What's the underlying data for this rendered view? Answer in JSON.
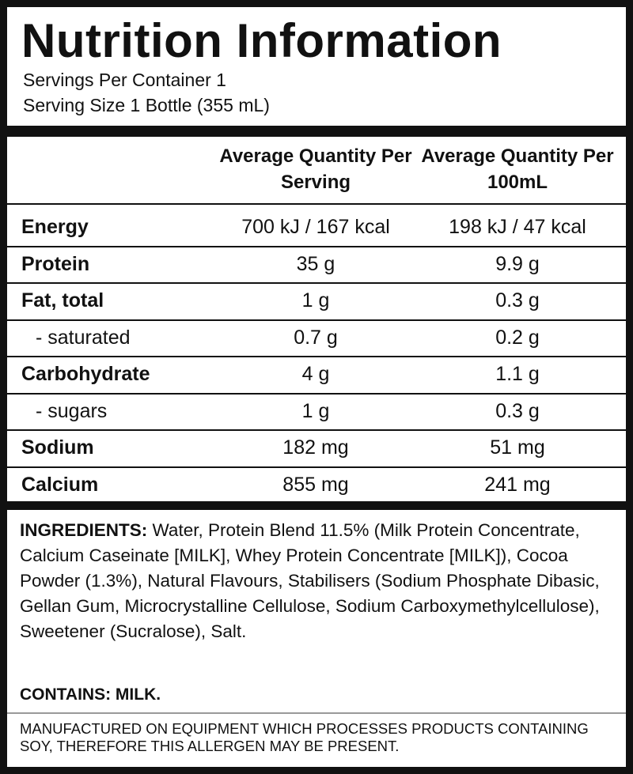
{
  "header": {
    "title": "Nutrition Information",
    "servings_per_container": "Servings Per Container 1",
    "serving_size": "Serving Size 1 Bottle (355 mL)"
  },
  "table": {
    "columns": [
      "Average Quantity Per Serving",
      "Average Quantity Per 100mL"
    ],
    "rows": [
      {
        "name": "Energy",
        "per_serving": "700 kJ / 167 kcal",
        "per_100ml": "198 kJ / 47 kcal"
      },
      {
        "name": "Protein",
        "per_serving": "35 g",
        "per_100ml": "9.9 g"
      },
      {
        "name": "Fat, total",
        "per_serving": "1 g",
        "per_100ml": "0.3 g",
        "sub": [
          {
            "name": "- saturated",
            "per_serving": "0.7 g",
            "per_100ml": "0.2 g"
          }
        ]
      },
      {
        "name": "Carbohydrate",
        "per_serving": "4 g",
        "per_100ml": "1.1 g",
        "sub": [
          {
            "name": "- sugars",
            "per_serving": "1 g",
            "per_100ml": "0.3 g"
          }
        ]
      },
      {
        "name": "Sodium",
        "per_serving": "182 mg",
        "per_100ml": "51 mg"
      },
      {
        "name": "Calcium",
        "per_serving": "855 mg",
        "per_100ml": "241 mg"
      }
    ]
  },
  "ingredients": {
    "label": "INGREDIENTS:",
    "text": "Water, Protein Blend 11.5% (Milk Protein Concentrate, Calcium Caseinate [MILK], Whey Protein Concentrate [MILK]), Cocoa Powder (1.3%), Natural Flavours, Stabilisers (Sodium Phosphate Dibasic, Gellan Gum, Microcrystalline Cellulose, Sodium Carboxymethylcellulose), Sweetener (Sucralose), Salt."
  },
  "contains": "CONTAINS: MILK.",
  "allergen_note": "MANUFACTURED ON EQUIPMENT WHICH PROCESSES PRODUCTS CONTAINING SOY, THEREFORE THIS ALLERGEN MAY BE PRESENT."
}
